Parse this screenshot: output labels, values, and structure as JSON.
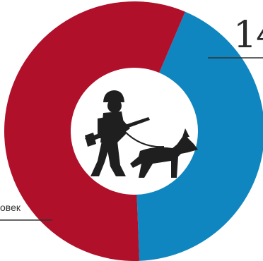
{
  "chart_data": {
    "type": "pie",
    "labels": [
      "",
      ""
    ],
    "values": [
      57,
      43
    ],
    "colors": [
      "#b0102a",
      "#0f86bf"
    ],
    "data_labels": [
      "овек",
      "14"
    ],
    "center_icon": "soldier-with-rifle-and-dog-icon"
  }
}
